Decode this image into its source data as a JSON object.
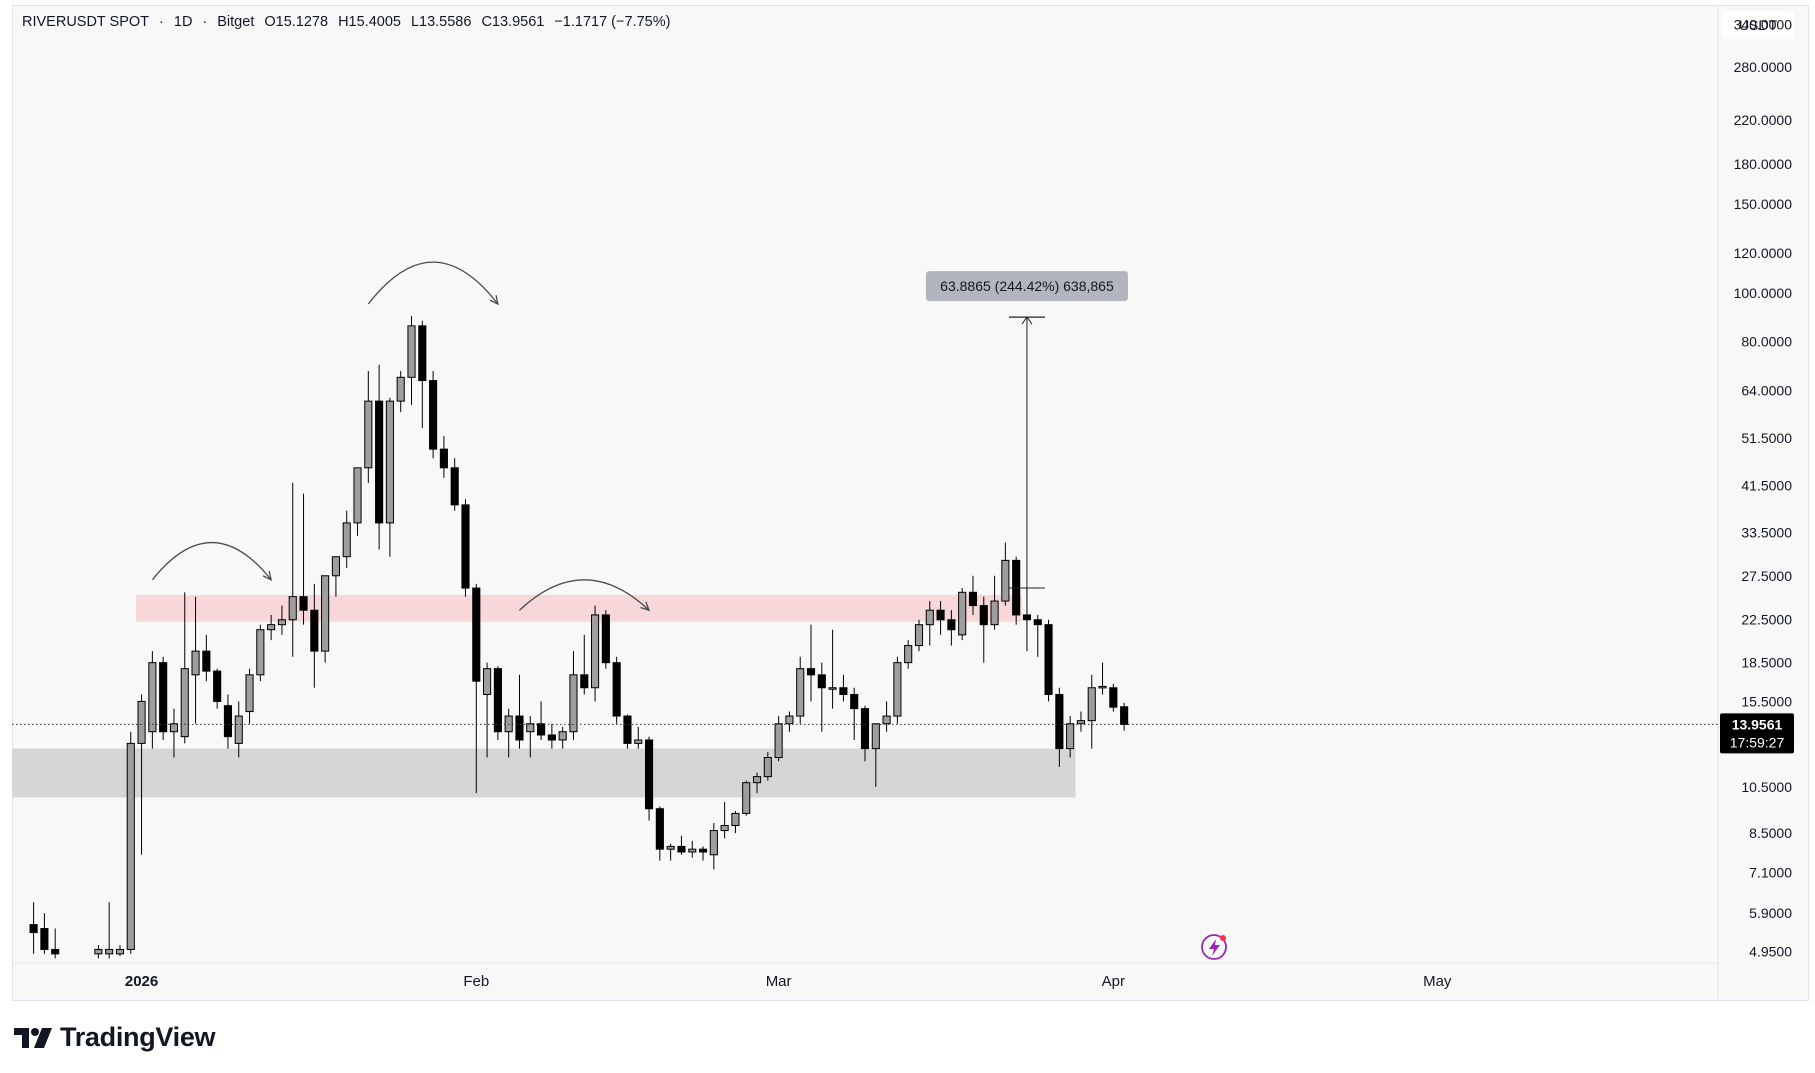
{
  "header": {
    "symbol": "RIVERUSDT SPOT",
    "timeframe": "1D",
    "exchange": "Bitget",
    "open": "O15.1278",
    "high": "H15.4005",
    "low": "L13.5586",
    "close": "C13.9561",
    "change": "−1.1717 (−7.75%)"
  },
  "currency": "USDT",
  "brand": "TradingView",
  "colors": {
    "bull_body": "#9e9e9e",
    "bear_body": "#000000",
    "resistance_zone": "#f8d7da",
    "support_zone": "#d6d6d6",
    "price_label_bg": "#000000"
  },
  "chart_data": {
    "type": "candlestick",
    "y_scale": "log",
    "ylim": [
      4.7,
      370
    ],
    "y_ticks": [
      "340.0000",
      "280.0000",
      "220.0000",
      "180.0000",
      "150.0000",
      "120.0000",
      "100.0000",
      "80.0000",
      "64.0000",
      "51.5000",
      "41.5000",
      "33.5000",
      "27.5000",
      "22.5000",
      "18.5000",
      "15.5000",
      "10.5000",
      "8.5000",
      "7.1000",
      "5.9000",
      "4.9500"
    ],
    "x_ticks": [
      {
        "label": "2026",
        "date": "2026-01-01",
        "bold": true
      },
      {
        "label": "Feb",
        "date": "2026-02-01",
        "bold": false
      },
      {
        "label": "Mar",
        "date": "2026-03-01",
        "bold": false
      },
      {
        "label": "Apr",
        "date": "2026-04-01",
        "bold": false
      },
      {
        "label": "May",
        "date": "2026-05-01",
        "bold": false
      }
    ],
    "x_range": [
      "2025-12-20",
      "2026-05-27"
    ],
    "last_price": {
      "value": "13.9561",
      "countdown": "17:59:27",
      "price": 13.9561
    },
    "candles": [
      [
        "2025-12-22",
        5.6,
        6.2,
        4.9,
        5.4
      ],
      [
        "2025-12-23",
        5.5,
        5.9,
        4.9,
        5.0
      ],
      [
        "2025-12-24",
        5.0,
        5.5,
        4.8,
        4.9
      ],
      [
        "2025-12-28",
        4.9,
        5.1,
        4.8,
        5.0
      ],
      [
        "2025-12-29",
        4.9,
        6.2,
        4.8,
        5.0
      ],
      [
        "2025-12-30",
        4.9,
        5.1,
        4.85,
        5.0
      ],
      [
        "2025-12-31",
        5.0,
        13.5,
        4.9,
        12.8
      ],
      [
        "2026-01-01",
        12.8,
        16.0,
        7.7,
        15.5
      ],
      [
        "2026-01-02",
        13.5,
        19.5,
        12.5,
        18.5
      ],
      [
        "2026-01-03",
        18.5,
        19.0,
        13.0,
        13.5
      ],
      [
        "2026-01-04",
        13.5,
        15.0,
        12.0,
        14.0
      ],
      [
        "2026-01-05",
        13.2,
        25.5,
        12.8,
        18.0
      ],
      [
        "2026-01-06",
        17.5,
        25.0,
        14.0,
        19.5
      ],
      [
        "2026-01-07",
        19.5,
        21.0,
        17.0,
        17.8
      ],
      [
        "2026-01-08",
        17.8,
        18.0,
        15.0,
        15.5
      ],
      [
        "2026-01-09",
        15.2,
        16.0,
        12.5,
        13.2
      ],
      [
        "2026-01-10",
        12.8,
        15.5,
        12.0,
        14.5
      ],
      [
        "2026-01-11",
        14.8,
        18.0,
        14.0,
        17.5
      ],
      [
        "2026-01-12",
        17.5,
        22.0,
        17.0,
        21.5
      ],
      [
        "2026-01-13",
        21.5,
        23.0,
        20.5,
        22.0
      ],
      [
        "2026-01-14",
        22.0,
        24.0,
        21.0,
        22.5
      ],
      [
        "2026-01-15",
        22.5,
        42.0,
        19.0,
        25.0
      ],
      [
        "2026-01-16",
        25.0,
        40.0,
        22.0,
        23.5
      ],
      [
        "2026-01-17",
        23.5,
        26.5,
        16.5,
        19.5
      ],
      [
        "2026-01-18",
        19.5,
        27.0,
        18.5,
        27.5
      ],
      [
        "2026-01-19",
        27.5,
        30.0,
        25.0,
        30.0
      ],
      [
        "2026-01-20",
        30.0,
        37.0,
        28.5,
        35.0
      ],
      [
        "2026-01-21",
        35.0,
        45.0,
        33.0,
        45.0
      ],
      [
        "2026-01-22",
        45.0,
        70.0,
        42.0,
        61.0
      ],
      [
        "2026-01-23",
        61.0,
        72.0,
        31.0,
        35.0
      ],
      [
        "2026-01-24",
        35.0,
        62.0,
        30.0,
        61.0
      ],
      [
        "2026-01-25",
        61.0,
        70.0,
        58.0,
        68.0
      ],
      [
        "2026-01-26",
        68.0,
        90.0,
        60.0,
        86.0
      ],
      [
        "2026-01-27",
        86.0,
        88.0,
        54.0,
        67.0
      ],
      [
        "2026-01-28",
        67.0,
        70.0,
        47.0,
        49.0
      ],
      [
        "2026-01-29",
        49.0,
        52.0,
        43.0,
        45.0
      ],
      [
        "2026-01-30",
        45.0,
        47.0,
        37.0,
        38.0
      ],
      [
        "2026-01-31",
        38.0,
        39.0,
        25.0,
        26.0
      ],
      [
        "2026-02-01",
        26.0,
        26.5,
        10.2,
        17.0
      ],
      [
        "2026-02-02",
        16.0,
        18.5,
        12.0,
        18.0
      ],
      [
        "2026-02-03",
        18.0,
        18.2,
        13.0,
        13.5
      ],
      [
        "2026-02-04",
        13.5,
        15.0,
        12.0,
        14.5
      ],
      [
        "2026-02-05",
        14.5,
        17.5,
        12.5,
        13.0
      ],
      [
        "2026-02-06",
        13.5,
        14.5,
        12.0,
        14.0
      ],
      [
        "2026-02-07",
        14.0,
        15.5,
        13.0,
        13.3
      ],
      [
        "2026-02-08",
        13.3,
        14.0,
        12.5,
        13.0
      ],
      [
        "2026-02-09",
        13.0,
        13.8,
        12.5,
        13.5
      ],
      [
        "2026-02-10",
        13.5,
        19.5,
        13.0,
        17.5
      ],
      [
        "2026-02-11",
        17.5,
        21.0,
        16.0,
        16.5
      ],
      [
        "2026-02-12",
        16.5,
        24.0,
        15.5,
        23.0
      ],
      [
        "2026-02-13",
        23.0,
        23.5,
        18.0,
        18.5
      ],
      [
        "2026-02-14",
        18.5,
        19.0,
        14.0,
        14.5
      ],
      [
        "2026-02-15",
        14.5,
        14.6,
        12.5,
        12.8
      ],
      [
        "2026-02-16",
        12.8,
        13.8,
        12.5,
        13.0
      ],
      [
        "2026-02-17",
        13.0,
        13.2,
        9.0,
        9.5
      ],
      [
        "2026-02-18",
        9.5,
        9.6,
        7.5,
        7.9
      ],
      [
        "2026-02-19",
        7.9,
        8.1,
        7.5,
        8.0
      ],
      [
        "2026-02-20",
        8.0,
        8.4,
        7.7,
        7.8
      ],
      [
        "2026-02-21",
        7.8,
        8.2,
        7.6,
        7.9
      ],
      [
        "2026-02-22",
        7.9,
        8.0,
        7.5,
        7.8
      ],
      [
        "2026-02-23",
        7.7,
        8.9,
        7.2,
        8.6
      ],
      [
        "2026-02-24",
        8.6,
        9.8,
        8.3,
        8.8
      ],
      [
        "2026-02-25",
        8.8,
        9.4,
        8.5,
        9.3
      ],
      [
        "2026-02-26",
        9.3,
        10.8,
        9.2,
        10.7
      ],
      [
        "2026-02-27",
        10.7,
        11.2,
        10.2,
        11.0
      ],
      [
        "2026-02-28",
        11.0,
        12.3,
        10.8,
        12.0
      ],
      [
        "2026-03-01",
        12.0,
        14.5,
        11.8,
        14.0
      ],
      [
        "2026-03-02",
        14.0,
        14.8,
        13.5,
        14.5
      ],
      [
        "2026-03-03",
        14.5,
        19.0,
        14.0,
        18.0
      ],
      [
        "2026-03-04",
        18.0,
        22.0,
        15.5,
        17.5
      ],
      [
        "2026-03-05",
        17.5,
        18.5,
        13.5,
        16.5
      ],
      [
        "2026-03-06",
        16.5,
        21.5,
        15.0,
        16.5
      ],
      [
        "2026-03-07",
        16.5,
        17.5,
        15.5,
        16.0
      ],
      [
        "2026-03-08",
        16.0,
        16.5,
        13.0,
        15.0
      ],
      [
        "2026-03-09",
        15.0,
        15.2,
        11.8,
        12.5
      ],
      [
        "2026-03-10",
        12.5,
        14.0,
        10.5,
        14.0
      ],
      [
        "2026-03-11",
        14.0,
        15.5,
        13.5,
        14.5
      ],
      [
        "2026-03-12",
        14.5,
        19.0,
        14.0,
        18.5
      ],
      [
        "2026-03-13",
        18.5,
        20.5,
        18.0,
        20.0
      ],
      [
        "2026-03-14",
        20.0,
        22.5,
        19.5,
        22.0
      ],
      [
        "2026-03-15",
        22.0,
        24.5,
        20.0,
        23.5
      ],
      [
        "2026-03-16",
        23.5,
        24.5,
        21.0,
        22.5
      ],
      [
        "2026-03-17",
        22.5,
        23.5,
        20.0,
        21.5
      ],
      [
        "2026-03-18",
        21.0,
        26.0,
        20.5,
        25.5
      ],
      [
        "2026-03-19",
        25.5,
        27.5,
        23.0,
        24.0
      ],
      [
        "2026-03-20",
        24.0,
        25.0,
        18.5,
        22.0
      ],
      [
        "2026-03-21",
        22.0,
        27.5,
        21.5,
        24.5
      ],
      [
        "2026-03-22",
        24.5,
        32.0,
        24.0,
        29.5
      ],
      [
        "2026-03-23",
        29.5,
        30.0,
        22.0,
        23.0
      ],
      [
        "2026-03-24",
        23.0,
        26.0,
        19.5,
        22.5
      ],
      [
        "2026-03-25",
        22.5,
        23.0,
        19.0,
        22.0
      ],
      [
        "2026-03-26",
        22.0,
        22.5,
        15.5,
        16.0
      ],
      [
        "2026-03-27",
        16.0,
        16.5,
        11.5,
        12.5
      ],
      [
        "2026-03-28",
        12.5,
        14.5,
        12.0,
        14.0
      ],
      [
        "2026-03-29",
        14.0,
        14.8,
        13.5,
        14.2
      ],
      [
        "2026-03-30",
        14.2,
        17.5,
        12.5,
        16.5
      ],
      [
        "2026-03-31",
        16.5,
        18.5,
        16.0,
        16.6
      ],
      [
        "2026-04-01",
        16.5,
        16.8,
        14.8,
        15.1
      ],
      [
        "2026-04-02",
        15.1278,
        15.4005,
        13.5586,
        13.9561
      ]
    ],
    "zones": [
      {
        "name": "resistance",
        "from_date": "2026-01-01",
        "to_date": "2026-03-23",
        "low": 22.3,
        "high": 25.2
      },
      {
        "name": "support",
        "from_date": "2025-12-20",
        "to_date": "2026-03-28",
        "low": 10.0,
        "high": 12.5
      }
    ],
    "measure": {
      "label": "63.8865 (244.42%) 638,865",
      "date": "2026-03-24",
      "from_price": 26.0,
      "to_price": 89.5
    },
    "arcs": [
      {
        "from_date": "2026-01-02",
        "to_date": "2026-01-13",
        "y_price": 27.0,
        "peak_price": 32.0
      },
      {
        "from_date": "2026-01-22",
        "to_date": "2026-02-03",
        "y_price": 95.0,
        "peak_price": 115.0
      },
      {
        "from_date": "2026-02-05",
        "to_date": "2026-02-17",
        "y_price": 23.5,
        "peak_price": 27.0
      }
    ]
  }
}
